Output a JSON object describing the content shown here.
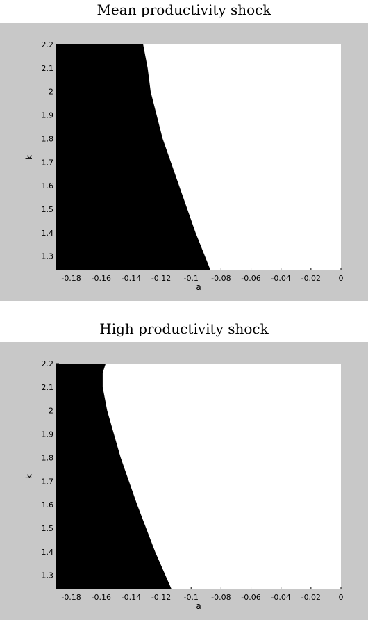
{
  "chart_data": [
    {
      "type": "area",
      "title": "Mean productivity shock",
      "xlabel": "a",
      "ylabel": "k",
      "xlim": [
        -0.19,
        0
      ],
      "ylim": [
        1.24,
        2.2
      ],
      "x_ticks": [
        -0.18,
        -0.16,
        -0.14,
        -0.12,
        -0.1,
        -0.08,
        -0.06,
        -0.04,
        -0.02,
        0
      ],
      "x_tick_labels": [
        "-0.18",
        "-0.16",
        "-0.14",
        "-0.12",
        "-0.1",
        "-0.08",
        "-0.06",
        "-0.04",
        "-0.02",
        "0"
      ],
      "y_ticks": [
        1.3,
        1.4,
        1.5,
        1.6,
        1.7,
        1.8,
        1.9,
        2,
        2.1,
        2.2
      ],
      "y_tick_labels": [
        "1.3",
        "1.4",
        "1.5",
        "1.6",
        "1.7",
        "1.8",
        "1.9",
        "2",
        "2.1",
        "2.2"
      ],
      "grid": false,
      "region_color": "#000000",
      "background_color": "#ffffff",
      "boundary": {
        "k": [
          1.24,
          1.4,
          1.6,
          1.8,
          2.0,
          2.1,
          2.2
        ],
        "a": [
          -0.087,
          -0.097,
          -0.108,
          -0.119,
          -0.127,
          -0.129,
          -0.132
        ]
      }
    },
    {
      "type": "area",
      "title": "High productivity shock",
      "xlabel": "a",
      "ylabel": "k",
      "xlim": [
        -0.19,
        0
      ],
      "ylim": [
        1.24,
        2.2
      ],
      "x_ticks": [
        -0.18,
        -0.16,
        -0.14,
        -0.12,
        -0.1,
        -0.08,
        -0.06,
        -0.04,
        -0.02,
        0
      ],
      "x_tick_labels": [
        "-0.18",
        "-0.16",
        "-0.14",
        "-0.12",
        "-0.1",
        "-0.08",
        "-0.06",
        "-0.04",
        "-0.02",
        "0"
      ],
      "y_ticks": [
        1.3,
        1.4,
        1.5,
        1.6,
        1.7,
        1.8,
        1.9,
        2,
        2.1,
        2.2
      ],
      "y_tick_labels": [
        "1.3",
        "1.4",
        "1.5",
        "1.6",
        "1.7",
        "1.8",
        "1.9",
        "2",
        "2.1",
        "2.2"
      ],
      "grid": false,
      "region_color": "#000000",
      "background_color": "#ffffff",
      "boundary": {
        "k": [
          1.24,
          1.4,
          1.6,
          1.8,
          2.0,
          2.1,
          2.16,
          2.2
        ],
        "a": [
          -0.113,
          -0.124,
          -0.136,
          -0.147,
          -0.156,
          -0.159,
          -0.159,
          -0.157
        ]
      }
    }
  ]
}
